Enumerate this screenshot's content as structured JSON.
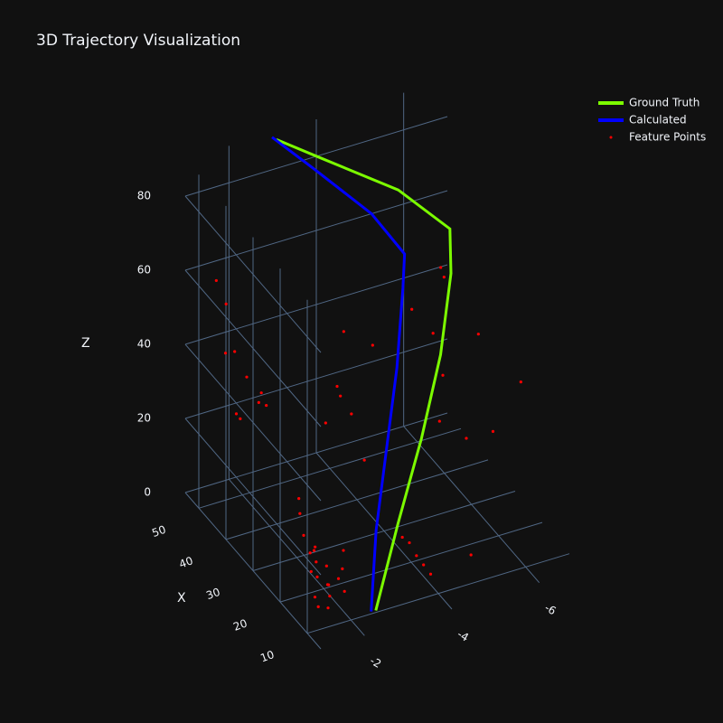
{
  "chart_data": {
    "type": "scatter3d",
    "title": "3D Trajectory Visualization",
    "x_title": "X",
    "z_title": "Z",
    "xlim": [
      5,
      55
    ],
    "ylim": [
      -7,
      -1
    ],
    "zlim": [
      0,
      90
    ],
    "xticks": [
      10,
      20,
      30,
      40,
      50
    ],
    "yticks": [
      -6,
      -4,
      -2
    ],
    "zticks": [
      0,
      20,
      40,
      60,
      80
    ],
    "series": [
      {
        "name": "Ground Truth",
        "color": "#7cfc00",
        "mode": "lines",
        "x": [
          10.5,
          12,
          13,
          14,
          15,
          17,
          28,
          42,
          52
        ],
        "y": [
          -2.6,
          -3.2,
          -3.8,
          -4.3,
          -4.6,
          -4.7,
          -4.2,
          -3.3,
          -2.9
        ],
        "z": [
          0,
          20,
          40,
          60,
          80,
          90,
          93,
          93,
          91
        ]
      },
      {
        "name": "Calculated",
        "color": "#0000ff",
        "mode": "lines",
        "x": [
          10.6,
          12,
          13,
          14,
          15,
          16,
          25,
          40,
          52
        ],
        "y": [
          -2.5,
          -2.7,
          -3.0,
          -3.3,
          -3.5,
          -3.6,
          -3.4,
          -3.0,
          -2.8
        ],
        "z": [
          0,
          20,
          40,
          60,
          80,
          88,
          92,
          93,
          92
        ]
      },
      {
        "name": "Feature Points",
        "color": "#ff0000",
        "mode": "markers",
        "x": [
          12,
          13,
          14,
          15,
          16,
          17,
          18,
          19,
          20,
          13,
          15,
          17,
          21,
          22,
          14,
          16,
          18,
          24,
          26,
          12,
          10,
          11,
          9,
          12,
          8,
          6,
          45,
          48,
          42,
          40,
          50,
          38,
          44,
          35,
          46,
          41,
          30,
          32,
          28,
          34,
          26,
          31,
          29,
          20,
          22,
          18,
          24,
          16,
          19,
          14,
          23,
          21,
          15
        ],
        "y": [
          -1.6,
          -1.7,
          -1.5,
          -1.8,
          -1.6,
          -1.9,
          -1.7,
          -2.0,
          -1.8,
          -1.9,
          -1.4,
          -1.5,
          -1.6,
          -1.9,
          -2.1,
          -2.2,
          -2.3,
          -1.7,
          -1.8,
          -1.3,
          -3.5,
          -3.4,
          -3.6,
          -3.3,
          -3.7,
          -4.5,
          -1.3,
          -1.5,
          -1.6,
          -1.2,
          -1.4,
          -1.8,
          -2.0,
          -1.5,
          -1.7,
          -1.3,
          -3.0,
          -3.2,
          -2.8,
          -3.5,
          -3.3,
          -3.8,
          -2.6,
          -4.5,
          -4.8,
          -4.6,
          -5.0,
          -4.4,
          -5.2,
          -5.5,
          -4.2,
          -5.6,
          -6.2
        ],
        "z": [
          3,
          5,
          2,
          6,
          8,
          4,
          10,
          7,
          12,
          9,
          11,
          14,
          15,
          9,
          4,
          13,
          6,
          18,
          20,
          7,
          12,
          15,
          10,
          16,
          8,
          12,
          45,
          55,
          40,
          50,
          60,
          35,
          30,
          42,
          25,
          32,
          40,
          55,
          45,
          30,
          25,
          50,
          35,
          60,
          75,
          50,
          70,
          40,
          30,
          35,
          65,
          55,
          45
        ]
      }
    ]
  }
}
